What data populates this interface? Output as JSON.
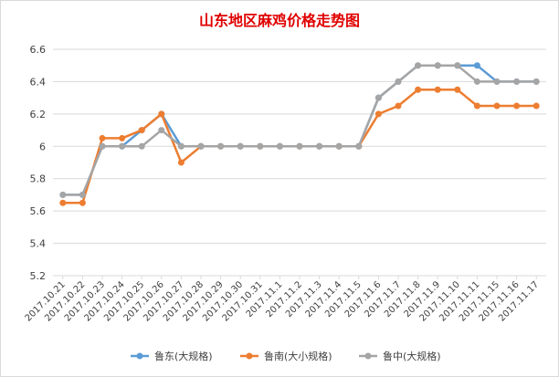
{
  "chart_data": {
    "type": "line",
    "title": "山东地区麻鸡价格走势图",
    "xlabel": "",
    "ylabel": "",
    "ylim": [
      5.2,
      6.6
    ],
    "yticks": [
      5.2,
      5.4,
      5.6,
      5.8,
      6,
      6.2,
      6.4,
      6.6
    ],
    "grid": true,
    "legend_position": "bottom",
    "categories": [
      "2017.10.21",
      "2017.10.22",
      "2017.10.23",
      "2017.10.24",
      "2017.10.25",
      "2017.10.26",
      "2017.10.27",
      "2017.10.28",
      "2017.10.29",
      "2017.10.30",
      "2017.10.31",
      "2017.11.1",
      "2017.11.2",
      "2017.11.3",
      "2017.11.4",
      "2017.11.5",
      "2017.11.6",
      "2017.11.7",
      "2017.11.8",
      "2017.11.9",
      "2017.11.10",
      "2017.11.11",
      "2017.11.15",
      "2017.11.16",
      "2017.11.17"
    ],
    "series": [
      {
        "name": "鲁东(大规格)",
        "color": "#5b9bd5",
        "values": [
          5.7,
          5.7,
          6,
          6,
          6.1,
          6.2,
          6,
          6,
          6,
          6,
          6,
          6,
          6,
          6,
          6,
          6,
          6.3,
          6.4,
          6.5,
          6.5,
          6.5,
          6.5,
          6.4,
          6.4,
          6.4
        ]
      },
      {
        "name": "鲁南(大小规格)",
        "color": "#ed7d31",
        "values": [
          5.65,
          5.65,
          6.05,
          6.05,
          6.1,
          6.2,
          5.9,
          6,
          6,
          6,
          6,
          6,
          6,
          6,
          6,
          6,
          6.2,
          6.25,
          6.35,
          6.35,
          6.35,
          6.25,
          6.25,
          6.25,
          6.25
        ]
      },
      {
        "name": "鲁中(大规格)",
        "color": "#a5a5a5",
        "values": [
          5.7,
          5.7,
          6,
          6,
          6,
          6.1,
          6,
          6,
          6,
          6,
          6,
          6,
          6,
          6,
          6,
          6,
          6.3,
          6.4,
          6.5,
          6.5,
          6.5,
          6.4,
          6.4,
          6.4,
          6.4
        ]
      }
    ]
  }
}
